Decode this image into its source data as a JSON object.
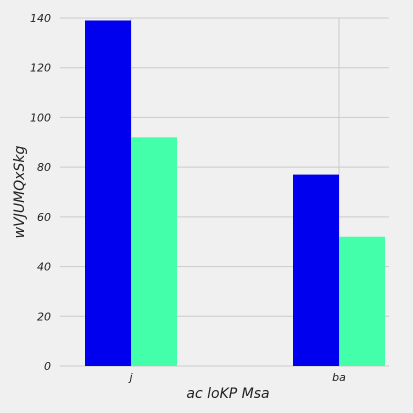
{
  "chart_data": {
    "type": "bar",
    "title": "",
    "xlabel": "ac  loKP Msa",
    "ylabel": "wVJUMQxSkg",
    "categories": [
      "j",
      "ba"
    ],
    "series": [
      {
        "values": [
          139,
          77
        ],
        "color": "#0000ee"
      },
      {
        "values": [
          92,
          52
        ],
        "color": "#44ffaa"
      }
    ],
    "ylim": [
      0,
      140
    ],
    "yticks": [
      0,
      20,
      40,
      60,
      80,
      100,
      120,
      140
    ],
    "grid": true,
    "background": "#f0f0f0",
    "grid_color": "#cbcbcb"
  }
}
